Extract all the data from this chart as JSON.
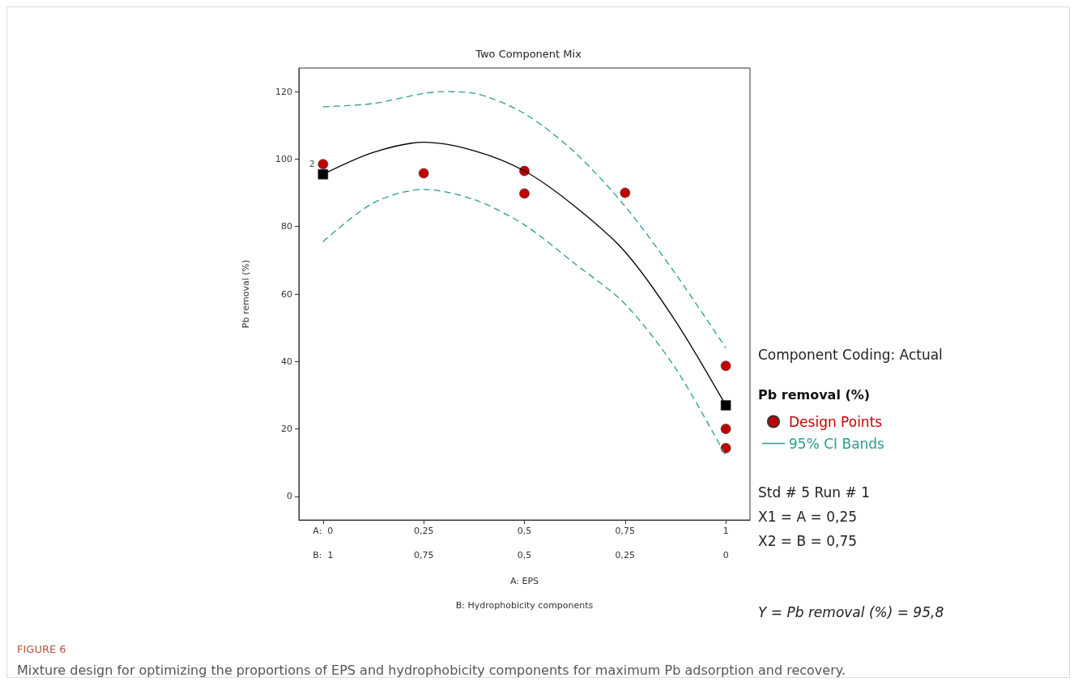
{
  "chart_data": {
    "type": "scatter",
    "title": "Two Component Mix",
    "xlabel": "A: EPS",
    "x2label": "B: Hydrophobicity components",
    "ylabel": "Pb removal (%)",
    "legend_title": "Pb removal (%)",
    "xlim": [
      -0.06,
      1.06
    ],
    "xticks": [
      {
        "value": 0,
        "label": "A:  0"
      },
      {
        "value": 0.25,
        "label": "0,25"
      },
      {
        "value": 0.5,
        "label": "0,5"
      },
      {
        "value": 0.75,
        "label": "0,75"
      },
      {
        "value": 1,
        "label": "1"
      }
    ],
    "x2lim": [
      1.06,
      -0.06
    ],
    "x2ticks": [
      {
        "value": 1,
        "label": "B:  1"
      },
      {
        "value": 0.75,
        "label": "0,75"
      },
      {
        "value": 0.5,
        "label": "0,5"
      },
      {
        "value": 0.25,
        "label": "0,25"
      },
      {
        "value": 0,
        "label": "0"
      }
    ],
    "ylim": [
      -7,
      127
    ],
    "yticks": [
      0,
      20,
      40,
      60,
      80,
      100,
      120
    ],
    "grid": false,
    "legend": "right",
    "series": [
      {
        "type": "line",
        "color": "#000000",
        "marker": "none",
        "line_style": "solid",
        "x": [
          0,
          0.125,
          0.25,
          0.375,
          0.5,
          0.625,
          0.75,
          0.875,
          1
        ],
        "values": [
          95.5,
          102,
          105,
          102.5,
          96.5,
          86,
          72.5,
          52,
          27
        ]
      },
      {
        "type": "scatter",
        "name": "Design Points",
        "color": "#c00000",
        "marker": "circle",
        "x": [
          0,
          0.25,
          0.5,
          0.5,
          0.75,
          1,
          1,
          1
        ],
        "values": [
          98.5,
          95.8,
          96.5,
          89.8,
          90,
          38.7,
          20,
          14.3
        ]
      },
      {
        "type": "line",
        "name": "95% CI Bands",
        "color": "#2a9d8f",
        "marker": "none",
        "line_style": "dashed",
        "x": [
          0,
          0.125,
          0.25,
          0.3,
          0.375,
          0.5,
          0.625,
          0.75,
          0.875,
          1
        ],
        "values": [
          115.5,
          116.5,
          119.5,
          120,
          119.5,
          113.5,
          102,
          86,
          66,
          44
        ]
      },
      {
        "type": "line",
        "color": "#2a9d8f",
        "marker": "none",
        "line_style": "dashed",
        "x": [
          0,
          0.125,
          0.25,
          0.375,
          0.5,
          0.625,
          0.75,
          0.875,
          1
        ],
        "values": [
          75.5,
          87,
          91,
          88,
          80.5,
          69,
          57,
          38,
          12
        ]
      },
      {
        "type": "scatter",
        "color": "#000000",
        "marker": "square",
        "x": [
          0,
          1
        ],
        "values": [
          95.5,
          27
        ]
      }
    ],
    "annotations": [
      "Component Coding: Actual",
      "Std # 5 Run # 1",
      "X1 = A = 0,25",
      "X2 = B = 0,75",
      "Y = Pb removal (%) = 95,8",
      {
        "text": "2",
        "x": 0,
        "y": 98.5
      },
      "FIGURE 6",
      "Mixture design for optimizing the proportions of EPS and hydrophobicity components for maximum Pb adsorption and recovery."
    ]
  }
}
